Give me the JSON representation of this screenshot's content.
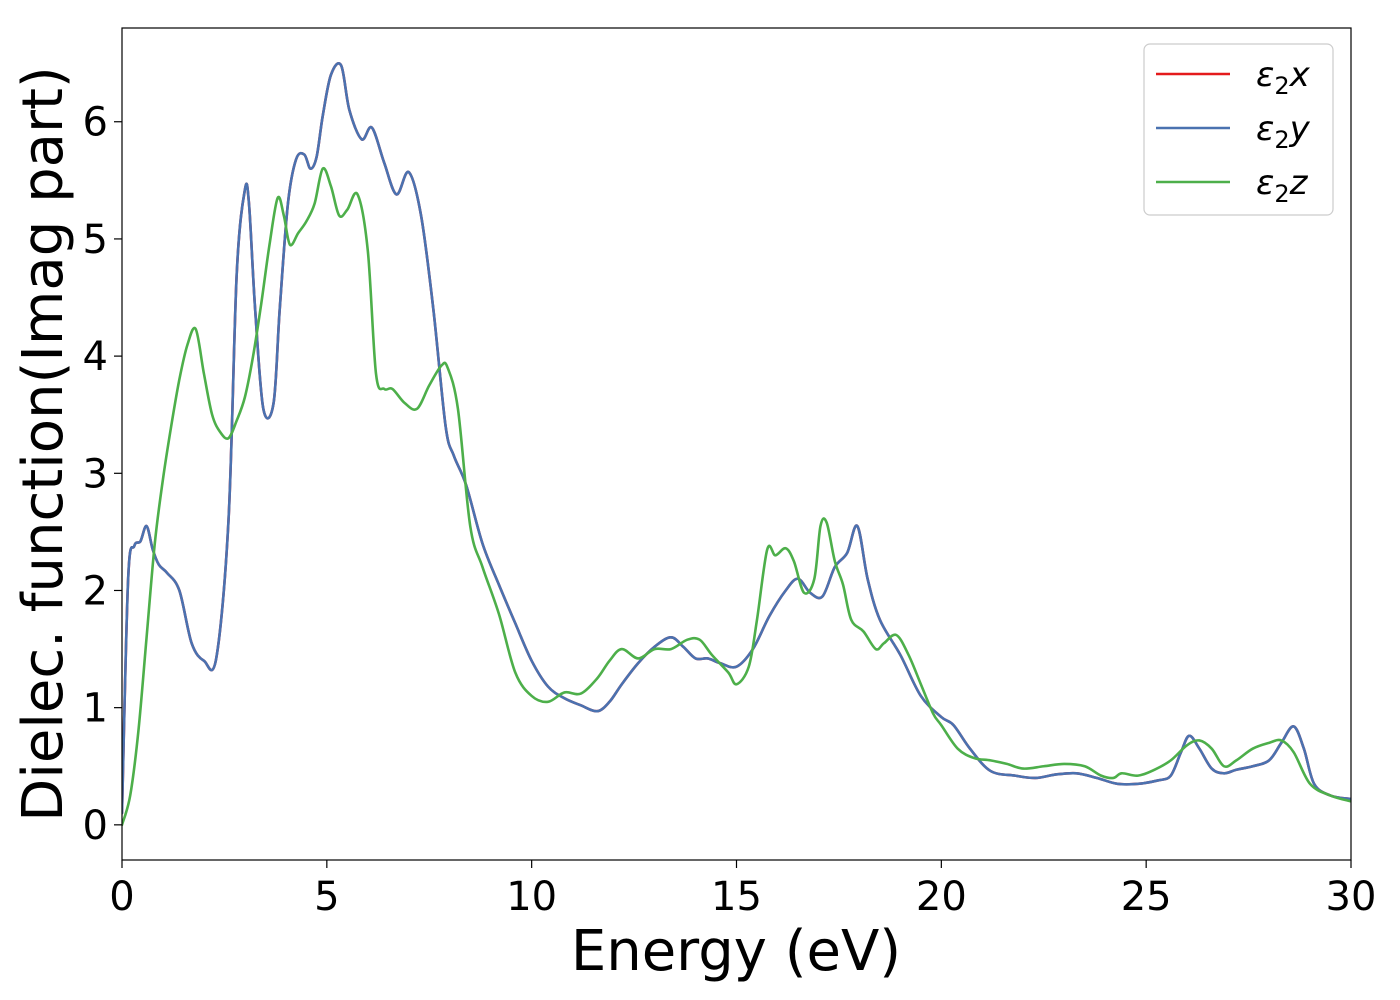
{
  "chart_data": {
    "type": "line",
    "title": "",
    "xlabel": "Energy (eV)",
    "ylabel": "Dielec. function(Imag part)",
    "xlim": [
      0,
      30
    ],
    "ylim": [
      -0.3,
      6.8
    ],
    "xticks": [
      0,
      5,
      10,
      15,
      20,
      25,
      30
    ],
    "yticks": [
      0,
      1,
      2,
      3,
      4,
      5,
      6
    ],
    "grid": false,
    "legend_position": "top-right",
    "series": [
      {
        "name": "ε₂x",
        "legend_base": "ε",
        "legend_sub": "2",
        "legend_suffix": "x",
        "color": "#e41a1c",
        "x": [
          0,
          0.15,
          0.3,
          0.45,
          0.6,
          0.75,
          0.9,
          1.1,
          1.4,
          1.7,
          2.0,
          2.3,
          2.6,
          2.8,
          3.0,
          3.1,
          3.25,
          3.45,
          3.7,
          3.85,
          4.05,
          4.25,
          4.45,
          4.6,
          4.75,
          4.9,
          5.1,
          5.35,
          5.55,
          5.85,
          6.1,
          6.4,
          6.7,
          7.0,
          7.3,
          7.6,
          7.9,
          8.1,
          8.4,
          8.8,
          9.2,
          9.6,
          10.0,
          10.4,
          10.8,
          11.2,
          11.6,
          11.9,
          12.2,
          12.6,
          13.0,
          13.4,
          13.7,
          14.0,
          14.3,
          14.6,
          15.0,
          15.4,
          15.8,
          16.2,
          16.5,
          16.8,
          17.1,
          17.4,
          17.7,
          17.95,
          18.2,
          18.5,
          19.0,
          19.5,
          20.0,
          20.3,
          20.7,
          21.2,
          21.8,
          22.3,
          22.8,
          23.3,
          23.8,
          24.3,
          24.8,
          25.3,
          25.6,
          25.85,
          26.05,
          26.3,
          26.6,
          26.9,
          27.2,
          27.6,
          28.0,
          28.3,
          28.6,
          28.85,
          29.1,
          29.5,
          30.0
        ],
        "y": [
          0.1,
          2.1,
          2.38,
          2.42,
          2.55,
          2.35,
          2.22,
          2.15,
          2.0,
          1.55,
          1.4,
          1.42,
          2.6,
          4.7,
          5.42,
          5.3,
          4.4,
          3.55,
          3.6,
          4.4,
          5.3,
          5.68,
          5.72,
          5.6,
          5.7,
          6.05,
          6.4,
          6.48,
          6.1,
          5.85,
          5.95,
          5.65,
          5.38,
          5.57,
          5.2,
          4.4,
          3.4,
          3.15,
          2.9,
          2.4,
          2.05,
          1.72,
          1.4,
          1.18,
          1.08,
          1.02,
          0.97,
          1.05,
          1.2,
          1.38,
          1.52,
          1.6,
          1.52,
          1.42,
          1.42,
          1.38,
          1.35,
          1.5,
          1.78,
          2.0,
          2.1,
          1.98,
          1.95,
          2.2,
          2.32,
          2.55,
          2.1,
          1.75,
          1.45,
          1.1,
          0.92,
          0.85,
          0.65,
          0.46,
          0.42,
          0.4,
          0.43,
          0.44,
          0.4,
          0.35,
          0.35,
          0.38,
          0.42,
          0.62,
          0.76,
          0.65,
          0.48,
          0.44,
          0.47,
          0.5,
          0.55,
          0.7,
          0.84,
          0.65,
          0.35,
          0.25,
          0.22
        ]
      },
      {
        "name": "ε₂y",
        "legend_base": "ε",
        "legend_sub": "2",
        "legend_suffix": "y",
        "color": "#4a72b0",
        "x": [
          0,
          0.15,
          0.3,
          0.45,
          0.6,
          0.75,
          0.9,
          1.1,
          1.4,
          1.7,
          2.0,
          2.3,
          2.6,
          2.8,
          3.0,
          3.1,
          3.25,
          3.45,
          3.7,
          3.85,
          4.05,
          4.25,
          4.45,
          4.6,
          4.75,
          4.9,
          5.1,
          5.35,
          5.55,
          5.85,
          6.1,
          6.4,
          6.7,
          7.0,
          7.3,
          7.6,
          7.9,
          8.1,
          8.4,
          8.8,
          9.2,
          9.6,
          10.0,
          10.4,
          10.8,
          11.2,
          11.6,
          11.9,
          12.2,
          12.6,
          13.0,
          13.4,
          13.7,
          14.0,
          14.3,
          14.6,
          15.0,
          15.4,
          15.8,
          16.2,
          16.5,
          16.8,
          17.1,
          17.4,
          17.7,
          17.95,
          18.2,
          18.5,
          19.0,
          19.5,
          20.0,
          20.3,
          20.7,
          21.2,
          21.8,
          22.3,
          22.8,
          23.3,
          23.8,
          24.3,
          24.8,
          25.3,
          25.6,
          25.85,
          26.05,
          26.3,
          26.6,
          26.9,
          27.2,
          27.6,
          28.0,
          28.3,
          28.6,
          28.85,
          29.1,
          29.5,
          30.0
        ],
        "y": [
          0.1,
          2.1,
          2.38,
          2.42,
          2.55,
          2.35,
          2.22,
          2.15,
          2.0,
          1.55,
          1.4,
          1.42,
          2.6,
          4.7,
          5.42,
          5.3,
          4.4,
          3.55,
          3.6,
          4.4,
          5.3,
          5.68,
          5.72,
          5.6,
          5.7,
          6.05,
          6.4,
          6.48,
          6.1,
          5.85,
          5.95,
          5.65,
          5.38,
          5.57,
          5.2,
          4.4,
          3.4,
          3.15,
          2.9,
          2.4,
          2.05,
          1.72,
          1.4,
          1.18,
          1.08,
          1.02,
          0.97,
          1.05,
          1.2,
          1.38,
          1.52,
          1.6,
          1.52,
          1.42,
          1.42,
          1.38,
          1.35,
          1.5,
          1.78,
          2.0,
          2.1,
          1.98,
          1.95,
          2.2,
          2.32,
          2.55,
          2.1,
          1.75,
          1.45,
          1.1,
          0.92,
          0.85,
          0.65,
          0.46,
          0.42,
          0.4,
          0.43,
          0.44,
          0.4,
          0.35,
          0.35,
          0.38,
          0.42,
          0.62,
          0.76,
          0.65,
          0.48,
          0.44,
          0.47,
          0.5,
          0.55,
          0.7,
          0.84,
          0.65,
          0.35,
          0.25,
          0.22
        ]
      },
      {
        "name": "ε₂z",
        "legend_base": "ε",
        "legend_sub": "2",
        "legend_suffix": "z",
        "color": "#4daf4a",
        "x": [
          0,
          0.2,
          0.4,
          0.6,
          0.8,
          1.0,
          1.2,
          1.4,
          1.6,
          1.8,
          2.0,
          2.2,
          2.4,
          2.6,
          2.8,
          3.0,
          3.2,
          3.4,
          3.6,
          3.8,
          3.95,
          4.1,
          4.3,
          4.5,
          4.7,
          4.9,
          5.1,
          5.3,
          5.5,
          5.75,
          6.0,
          6.2,
          6.4,
          6.6,
          6.9,
          7.2,
          7.5,
          7.8,
          7.95,
          8.2,
          8.5,
          8.8,
          9.2,
          9.6,
          10.0,
          10.4,
          10.8,
          11.2,
          11.6,
          11.9,
          12.2,
          12.6,
          13.0,
          13.4,
          13.8,
          14.1,
          14.4,
          14.8,
          15.0,
          15.3,
          15.5,
          15.75,
          15.95,
          16.2,
          16.4,
          16.65,
          16.9,
          17.05,
          17.2,
          17.4,
          17.6,
          17.8,
          18.1,
          18.4,
          18.6,
          18.9,
          19.2,
          19.5,
          19.8,
          20.0,
          20.4,
          20.8,
          21.2,
          21.6,
          22.0,
          22.5,
          23.0,
          23.5,
          23.9,
          24.2,
          24.4,
          24.8,
          25.2,
          25.6,
          26.0,
          26.3,
          26.6,
          26.9,
          27.2,
          27.6,
          28.0,
          28.3,
          28.6,
          29.0,
          29.5,
          30.0
        ],
        "y": [
          0.0,
          0.25,
          0.8,
          1.6,
          2.4,
          2.95,
          3.4,
          3.8,
          4.1,
          4.23,
          3.85,
          3.5,
          3.35,
          3.3,
          3.45,
          3.65,
          4.0,
          4.45,
          4.95,
          5.35,
          5.2,
          4.95,
          5.05,
          5.15,
          5.3,
          5.6,
          5.45,
          5.2,
          5.25,
          5.38,
          4.9,
          3.85,
          3.72,
          3.72,
          3.6,
          3.55,
          3.75,
          3.92,
          3.9,
          3.55,
          2.55,
          2.2,
          1.8,
          1.3,
          1.1,
          1.05,
          1.13,
          1.12,
          1.25,
          1.4,
          1.5,
          1.42,
          1.5,
          1.5,
          1.58,
          1.58,
          1.45,
          1.3,
          1.2,
          1.35,
          1.75,
          2.35,
          2.3,
          2.36,
          2.25,
          1.98,
          2.1,
          2.55,
          2.58,
          2.25,
          2.05,
          1.75,
          1.65,
          1.5,
          1.55,
          1.62,
          1.45,
          1.2,
          0.95,
          0.85,
          0.65,
          0.57,
          0.55,
          0.52,
          0.48,
          0.5,
          0.52,
          0.5,
          0.42,
          0.4,
          0.44,
          0.42,
          0.47,
          0.55,
          0.68,
          0.72,
          0.65,
          0.5,
          0.55,
          0.65,
          0.7,
          0.72,
          0.62,
          0.35,
          0.25,
          0.2
        ]
      }
    ]
  }
}
